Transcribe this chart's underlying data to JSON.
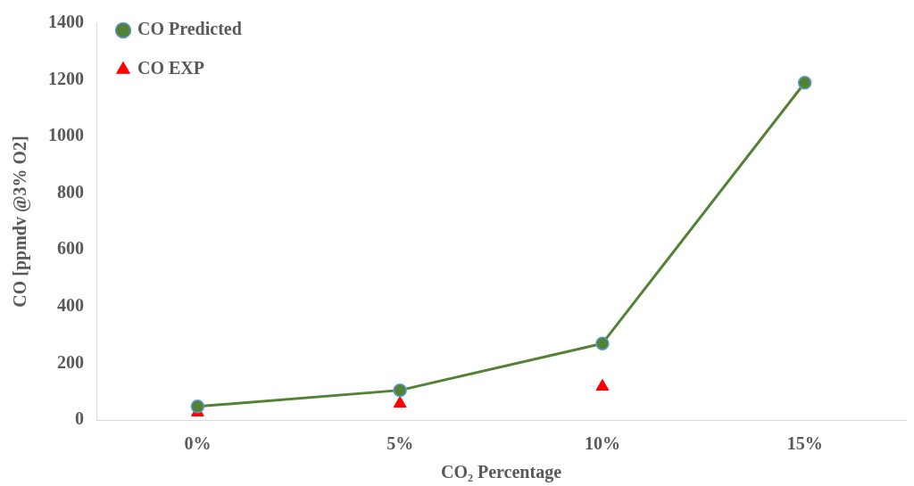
{
  "chart_data": {
    "type": "line",
    "xlabel": "CO₂ Percentage",
    "ylabel": "CO [ppmdv @3% O2]",
    "categories": [
      "0%",
      "5%",
      "10%",
      "15%"
    ],
    "ylim": [
      0,
      1400
    ],
    "yticks": [
      0,
      200,
      400,
      600,
      800,
      1000,
      1200,
      1400
    ],
    "grid": false,
    "legend": "top left",
    "series": [
      {
        "name": "CO Predicted",
        "type": "line",
        "color": "#548235",
        "marker": "circle",
        "values": [
          48,
          105,
          270,
          1190
        ]
      },
      {
        "name": "CO EXP",
        "type": "scatter",
        "color": "#ff0000",
        "marker": "triangle",
        "x": [
          "0%",
          "5%",
          "10%"
        ],
        "values": [
          27,
          58,
          118
        ]
      }
    ]
  }
}
